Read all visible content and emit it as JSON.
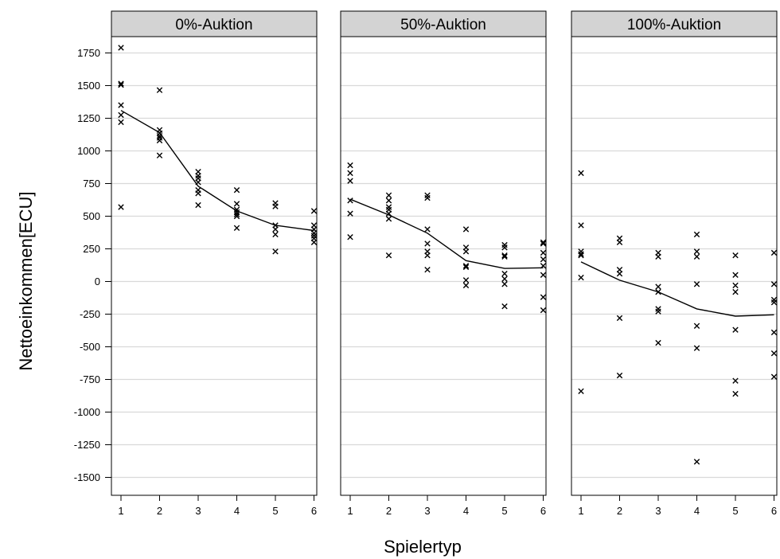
{
  "chart_data": {
    "type": "scatter",
    "xlabel": "Spielertyp",
    "ylabel": "Nettoeinkommen[ECU]",
    "x_ticks": [
      1,
      2,
      3,
      4,
      5,
      6
    ],
    "y_ticks": [
      1750,
      1500,
      1250,
      1000,
      750,
      500,
      250,
      0,
      -250,
      -500,
      -750,
      -1000,
      -1250,
      -1500
    ],
    "xlim": [
      0.75,
      6.25
    ],
    "ylim": [
      -1550,
      1850
    ],
    "grid": "horizontal",
    "marker": "×",
    "colors": {
      "points": "#000000",
      "grid": "#d9d9d9",
      "strip": "#d3d3d3",
      "frame": "#000000"
    },
    "panels": [
      {
        "title": "0%-Auktion",
        "points": [
          [
            1,
            1790
          ],
          [
            1,
            1515
          ],
          [
            1,
            1505
          ],
          [
            1,
            1350
          ],
          [
            1,
            1275
          ],
          [
            1,
            1220
          ],
          [
            1,
            570
          ],
          [
            2,
            1465
          ],
          [
            2,
            1160
          ],
          [
            2,
            1135
          ],
          [
            2,
            1115
          ],
          [
            2,
            1100
          ],
          [
            2,
            1080
          ],
          [
            2,
            965
          ],
          [
            3,
            840
          ],
          [
            3,
            810
          ],
          [
            3,
            790
          ],
          [
            3,
            760
          ],
          [
            3,
            700
          ],
          [
            3,
            675
          ],
          [
            3,
            585
          ],
          [
            4,
            700
          ],
          [
            4,
            595
          ],
          [
            4,
            550
          ],
          [
            4,
            530
          ],
          [
            4,
            515
          ],
          [
            4,
            500
          ],
          [
            4,
            410
          ],
          [
            5,
            600
          ],
          [
            5,
            575
          ],
          [
            5,
            430
          ],
          [
            5,
            400
          ],
          [
            5,
            360
          ],
          [
            5,
            230
          ],
          [
            6,
            540
          ],
          [
            6,
            430
          ],
          [
            6,
            400
          ],
          [
            6,
            370
          ],
          [
            6,
            350
          ],
          [
            6,
            330
          ],
          [
            6,
            300
          ]
        ],
        "line": [
          [
            1,
            1310
          ],
          [
            2,
            1140
          ],
          [
            3,
            730
          ],
          [
            4,
            540
          ],
          [
            5,
            430
          ],
          [
            6,
            390
          ]
        ]
      },
      {
        "title": "50%-Auktion",
        "points": [
          [
            1,
            890
          ],
          [
            1,
            830
          ],
          [
            1,
            770
          ],
          [
            1,
            620
          ],
          [
            1,
            520
          ],
          [
            1,
            340
          ],
          [
            2,
            660
          ],
          [
            2,
            620
          ],
          [
            2,
            570
          ],
          [
            2,
            550
          ],
          [
            2,
            520
          ],
          [
            2,
            480
          ],
          [
            2,
            200
          ],
          [
            3,
            660
          ],
          [
            3,
            640
          ],
          [
            3,
            400
          ],
          [
            3,
            290
          ],
          [
            3,
            230
          ],
          [
            3,
            200
          ],
          [
            3,
            90
          ],
          [
            4,
            400
          ],
          [
            4,
            260
          ],
          [
            4,
            230
          ],
          [
            4,
            120
          ],
          [
            4,
            110
          ],
          [
            4,
            10
          ],
          [
            4,
            -30
          ],
          [
            5,
            280
          ],
          [
            5,
            260
          ],
          [
            5,
            200
          ],
          [
            5,
            190
          ],
          [
            5,
            60
          ],
          [
            5,
            20
          ],
          [
            5,
            -20
          ],
          [
            5,
            -190
          ],
          [
            6,
            300
          ],
          [
            6,
            290
          ],
          [
            6,
            220
          ],
          [
            6,
            170
          ],
          [
            6,
            120
          ],
          [
            6,
            50
          ],
          [
            6,
            -120
          ],
          [
            6,
            -220
          ]
        ],
        "line": [
          [
            1,
            630
          ],
          [
            2,
            510
          ],
          [
            3,
            370
          ],
          [
            4,
            160
          ],
          [
            5,
            100
          ],
          [
            6,
            105
          ]
        ]
      },
      {
        "title": "100%-Auktion",
        "points": [
          [
            1,
            830
          ],
          [
            1,
            430
          ],
          [
            1,
            230
          ],
          [
            1,
            210
          ],
          [
            1,
            200
          ],
          [
            1,
            30
          ],
          [
            1,
            -840
          ],
          [
            2,
            330
          ],
          [
            2,
            300
          ],
          [
            2,
            90
          ],
          [
            2,
            60
          ],
          [
            2,
            -280
          ],
          [
            2,
            -720
          ],
          [
            3,
            220
          ],
          [
            3,
            190
          ],
          [
            3,
            -40
          ],
          [
            3,
            -80
          ],
          [
            3,
            -210
          ],
          [
            3,
            -230
          ],
          [
            3,
            -470
          ],
          [
            4,
            360
          ],
          [
            4,
            230
          ],
          [
            4,
            190
          ],
          [
            4,
            -20
          ],
          [
            4,
            -340
          ],
          [
            4,
            -510
          ],
          [
            4,
            -1380
          ],
          [
            5,
            200
          ],
          [
            5,
            50
          ],
          [
            5,
            -30
          ],
          [
            5,
            -80
          ],
          [
            5,
            -370
          ],
          [
            5,
            -760
          ],
          [
            5,
            -860
          ],
          [
            6,
            220
          ],
          [
            6,
            -20
          ],
          [
            6,
            -140
          ],
          [
            6,
            -160
          ],
          [
            6,
            -390
          ],
          [
            6,
            -550
          ],
          [
            6,
            -730
          ]
        ],
        "line": [
          [
            1,
            150
          ],
          [
            2,
            10
          ],
          [
            3,
            -80
          ],
          [
            4,
            -210
          ],
          [
            5,
            -265
          ],
          [
            6,
            -255
          ]
        ]
      }
    ]
  }
}
